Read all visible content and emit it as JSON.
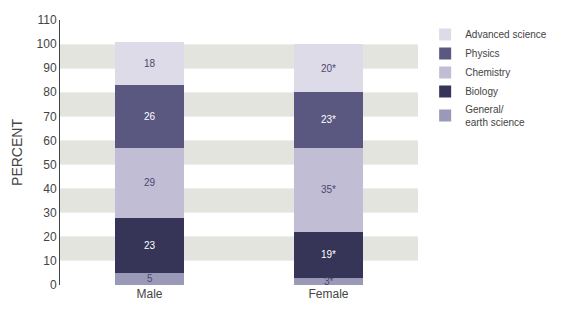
{
  "chart_data": {
    "type": "bar",
    "stacked": true,
    "categories": [
      "Male",
      "Female"
    ],
    "ylabel": "PERCENT",
    "series": [
      {
        "name": "General/\nearth science",
        "color": "#9b99b8",
        "values": [
          5,
          3
        ],
        "value_labels": [
          "5",
          "3*"
        ]
      },
      {
        "name": "Biology",
        "color": "#363457",
        "values": [
          23,
          19
        ],
        "value_labels": [
          "23",
          "19*"
        ]
      },
      {
        "name": "Chemistry",
        "color": "#c0bdd4",
        "values": [
          29,
          35
        ],
        "value_labels": [
          "29",
          "35*"
        ]
      },
      {
        "name": "Physics",
        "color": "#5a5780",
        "values": [
          26,
          23
        ],
        "value_labels": [
          "26",
          "23*"
        ]
      },
      {
        "name": "Advanced science",
        "color": "#dddbe8",
        "values": [
          18,
          20
        ],
        "value_labels": [
          "18",
          "20*"
        ]
      }
    ],
    "ylim": [
      0,
      110
    ],
    "yticks": [
      0,
      10,
      20,
      30,
      40,
      50,
      60,
      70,
      80,
      90,
      100,
      110
    ],
    "grid": true,
    "data_labels": true,
    "legend": "right"
  }
}
